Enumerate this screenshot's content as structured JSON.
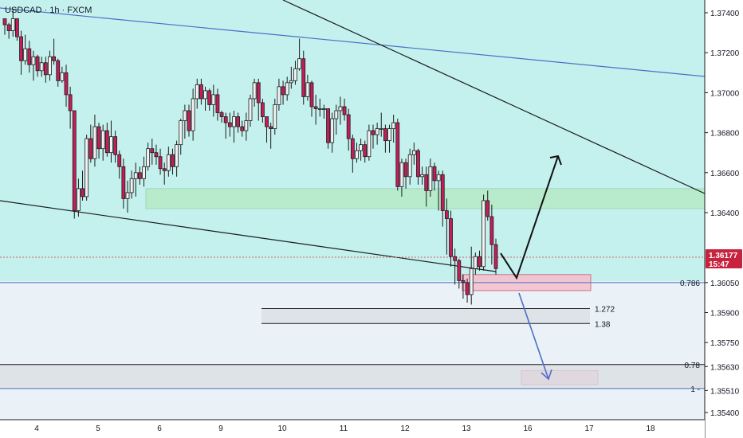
{
  "symbol": "USDCAD · 1h · FXCM",
  "colors": {
    "up": "#26a69a",
    "down": "#ef5350",
    "candle_body": "#1b1b1b",
    "candle_red": "#c41e5a",
    "price_line": "#e0566a",
    "blue_line": "#4c6fc7",
    "green_zone": "#b7ebc7",
    "pink_zone": "#f4c2cd",
    "grey_zone": "#d9dde3",
    "bg_top": "#c4f1ee",
    "bg_bottom": "#eaf1f7"
  },
  "chart_data": {
    "type": "candlestick",
    "title": "USDCAD · 1h · FXCM",
    "x_tick_labels": [
      "4",
      "5",
      "6",
      "9",
      "10",
      "11",
      "12",
      "13",
      "16",
      "17",
      "18"
    ],
    "y_tick_labels": [
      "1.37400",
      "1.37200",
      "1.37000",
      "1.36800",
      "1.36600",
      "1.36400",
      "1.36050",
      "1.35900",
      "1.35750",
      "1.35630",
      "1.35510",
      "1.35400"
    ],
    "ylim": [
      1.354,
      1.3745
    ],
    "current_price": {
      "value": "1.36177",
      "timer": "15:47"
    },
    "levels": [
      {
        "label": "0.786",
        "price": 1.3605
      },
      {
        "label": "1.272",
        "price": 1.3592
      },
      {
        "label": "1.38",
        "price": 1.35845
      },
      {
        "label": "0.78",
        "price": 1.3564
      },
      {
        "label": "1",
        "price": 1.3552
      }
    ],
    "zones": [
      {
        "name": "green-demand-zone",
        "from_day": 5.7,
        "to_day": 18.8,
        "top": 1.3652,
        "bottom": 1.3642
      },
      {
        "name": "pink-zone-upper",
        "from_day": 12.95,
        "to_day": 15.95,
        "top": 1.3609,
        "bottom": 1.3601
      },
      {
        "name": "pink-zone-lower",
        "from_day": 16.0,
        "to_day": 17.3,
        "top": 1.3561,
        "bottom": 1.3554
      }
    ],
    "closes": [
      1.3734,
      1.3731,
      1.3737,
      1.3728,
      1.3716,
      1.3722,
      1.3714,
      1.3718,
      1.3711,
      1.3715,
      1.3709,
      1.3718,
      1.3716,
      1.3706,
      1.371,
      1.3699,
      1.3691,
      1.3641,
      1.3652,
      1.3648,
      1.3677,
      1.3667,
      1.3683,
      1.3672,
      1.3681,
      1.367,
      1.3678,
      1.3669,
      1.3663,
      1.3647,
      1.365,
      1.3657,
      1.366,
      1.3657,
      1.3663,
      1.3672,
      1.367,
      1.3668,
      1.3662,
      1.3661,
      1.3669,
      1.3663,
      1.3674,
      1.3686,
      1.3691,
      1.3681,
      1.3697,
      1.3704,
      1.3697,
      1.3701,
      1.3694,
      1.3699,
      1.369,
      1.3688,
      1.3685,
      1.3683,
      1.3688,
      1.3683,
      1.3681,
      1.3686,
      1.3697,
      1.3705,
      1.3695,
      1.3688,
      1.3683,
      1.3682,
      1.3694,
      1.3703,
      1.3699,
      1.3705,
      1.3706,
      1.3712,
      1.3717,
      1.3698,
      1.3705,
      1.3693,
      1.3692,
      1.3692,
      1.3692,
      1.3675,
      1.3687,
      1.3691,
      1.3693,
      1.3689,
      1.3677,
      1.3667,
      1.3671,
      1.3674,
      1.3668,
      1.3681,
      1.3679,
      1.3682,
      1.3682,
      1.3676,
      1.3682,
      1.3685,
      1.3653,
      1.3665,
      1.3658,
      1.3669,
      1.3671,
      1.3658,
      1.3659,
      1.3651,
      1.3663,
      1.3656,
      1.3659,
      1.3641,
      1.3637,
      1.3618,
      1.3616,
      1.3606,
      1.3605,
      1.3599,
      1.3612,
      1.3618,
      1.3613,
      1.3646,
      1.3638,
      1.3624,
      1.3612
    ],
    "highs": [
      1.3737,
      1.3735,
      1.3742,
      1.3736,
      1.3731,
      1.3729,
      1.3726,
      1.3721,
      1.3719,
      1.3718,
      1.3718,
      1.3721,
      1.3727,
      1.3717,
      1.3713,
      1.3714,
      1.3703,
      1.3691,
      1.3657,
      1.3661,
      1.3679,
      1.3684,
      1.3689,
      1.3685,
      1.3684,
      1.3685,
      1.3686,
      1.3681,
      1.3671,
      1.3667,
      1.3656,
      1.3661,
      1.3665,
      1.3663,
      1.3668,
      1.3675,
      1.3677,
      1.3674,
      1.3672,
      1.3665,
      1.3673,
      1.3672,
      1.3676,
      1.3687,
      1.3694,
      1.3694,
      1.3702,
      1.3707,
      1.3707,
      1.3703,
      1.3702,
      1.3704,
      1.3702,
      1.3691,
      1.369,
      1.369,
      1.3691,
      1.369,
      1.3686,
      1.369,
      1.3699,
      1.3707,
      1.3707,
      1.3697,
      1.3688,
      1.3685,
      1.3697,
      1.3707,
      1.3706,
      1.3708,
      1.3713,
      1.3716,
      1.3727,
      1.3721,
      1.3709,
      1.3706,
      1.3699,
      1.3697,
      1.3694,
      1.3692,
      1.369,
      1.3694,
      1.3698,
      1.3697,
      1.3692,
      1.3679,
      1.3675,
      1.3677,
      1.3676,
      1.3684,
      1.3684,
      1.3685,
      1.369,
      1.3684,
      1.3684,
      1.3689,
      1.3687,
      1.3667,
      1.3667,
      1.3672,
      1.3675,
      1.3672,
      1.3663,
      1.3663,
      1.3667,
      1.3665,
      1.3661,
      1.3661,
      1.3647,
      1.3641,
      1.3622,
      1.3617,
      1.3609,
      1.3607,
      1.3623,
      1.362,
      1.3621,
      1.3649,
      1.3651,
      1.3644,
      1.3627
    ],
    "lows": [
      1.3729,
      1.3727,
      1.3728,
      1.3726,
      1.3709,
      1.3714,
      1.371,
      1.3706,
      1.3708,
      1.3708,
      1.3705,
      1.3706,
      1.3714,
      1.3703,
      1.3705,
      1.3693,
      1.3682,
      1.3637,
      1.3638,
      1.3646,
      1.3646,
      1.3665,
      1.3663,
      1.3667,
      1.3666,
      1.3668,
      1.3665,
      1.3665,
      1.3657,
      1.3642,
      1.364,
      1.3647,
      1.3648,
      1.3654,
      1.3653,
      1.3661,
      1.3664,
      1.3664,
      1.3659,
      1.3654,
      1.3658,
      1.3659,
      1.3658,
      1.3669,
      1.3677,
      1.3678,
      1.3676,
      1.3692,
      1.3694,
      1.3691,
      1.3691,
      1.3688,
      1.3686,
      1.3685,
      1.3677,
      1.3678,
      1.3675,
      1.368,
      1.3678,
      1.3676,
      1.3683,
      1.3693,
      1.3686,
      1.3685,
      1.3675,
      1.3672,
      1.3679,
      1.3691,
      1.3694,
      1.3696,
      1.3702,
      1.3704,
      1.3711,
      1.3694,
      1.3696,
      1.3688,
      1.3684,
      1.3688,
      1.3687,
      1.3672,
      1.367,
      1.3679,
      1.3684,
      1.3686,
      1.3671,
      1.366,
      1.3665,
      1.3666,
      1.3665,
      1.3666,
      1.3672,
      1.3674,
      1.3678,
      1.367,
      1.367,
      1.3675,
      1.3651,
      1.3648,
      1.3652,
      1.3654,
      1.3664,
      1.3654,
      1.3654,
      1.3643,
      1.3648,
      1.3651,
      1.3641,
      1.3633,
      1.3619,
      1.3613,
      1.3604,
      1.3602,
      1.3597,
      1.3595,
      1.3594,
      1.3609,
      1.3611,
      1.3611,
      1.3636,
      1.3614,
      1.3609
    ]
  }
}
